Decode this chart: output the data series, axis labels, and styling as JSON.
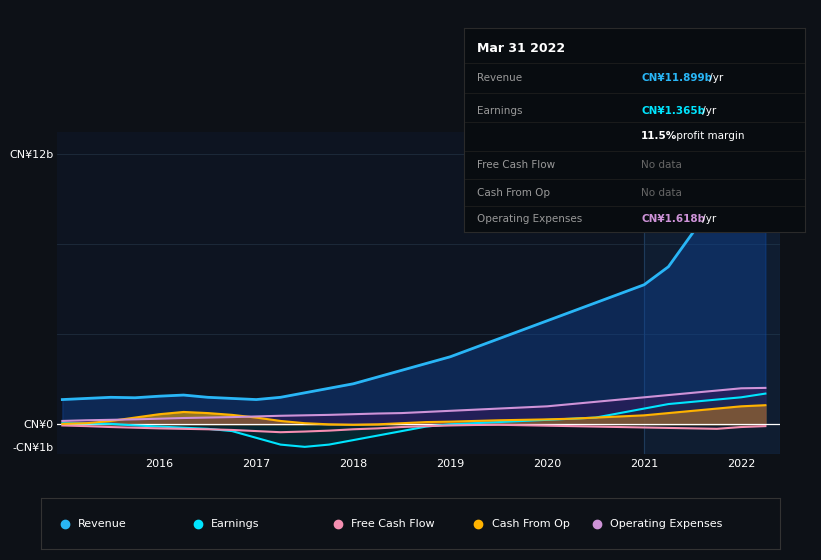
{
  "bg_color": "#0d1117",
  "chart_bg": "#0d1421",
  "grid_color": "#1e2d3d",
  "title_date": "Mar 31 2022",
  "tooltip_rows": [
    {
      "label": "Revenue",
      "value": "CN¥11.899b /yr",
      "value_color": "#29b6f6"
    },
    {
      "label": "Earnings",
      "value": "CN¥1.365b /yr",
      "value_color": "#00e5ff"
    },
    {
      "label": "",
      "value": "11.5% profit margin",
      "value_color": "#ffffff"
    },
    {
      "label": "Free Cash Flow",
      "value": "No data",
      "value_color": "#666666"
    },
    {
      "label": "Cash From Op",
      "value": "No data",
      "value_color": "#666666"
    },
    {
      "label": "Operating Expenses",
      "value": "CN¥1.618b /yr",
      "value_color": "#ce93d8"
    }
  ],
  "years": [
    2015.0,
    2015.25,
    2015.5,
    2015.75,
    2016.0,
    2016.25,
    2016.5,
    2016.75,
    2017.0,
    2017.25,
    2017.5,
    2017.75,
    2018.0,
    2018.25,
    2018.5,
    2018.75,
    2019.0,
    2019.25,
    2019.5,
    2019.75,
    2020.0,
    2020.25,
    2020.5,
    2020.75,
    2021.0,
    2021.25,
    2021.5,
    2021.75,
    2022.0,
    2022.25
  ],
  "revenue": [
    1.1,
    1.15,
    1.2,
    1.18,
    1.25,
    1.3,
    1.2,
    1.15,
    1.1,
    1.2,
    1.4,
    1.6,
    1.8,
    2.1,
    2.4,
    2.7,
    3.0,
    3.4,
    3.8,
    4.2,
    4.6,
    5.0,
    5.4,
    5.8,
    6.2,
    7.0,
    8.5,
    10.0,
    11.5,
    11.9
  ],
  "earnings": [
    0.05,
    0.04,
    0.02,
    -0.05,
    -0.1,
    -0.15,
    -0.2,
    -0.3,
    -0.6,
    -0.9,
    -1.0,
    -0.9,
    -0.7,
    -0.5,
    -0.3,
    -0.1,
    0.0,
    0.05,
    0.1,
    0.15,
    0.2,
    0.25,
    0.3,
    0.5,
    0.7,
    0.9,
    1.0,
    1.1,
    1.2,
    1.365
  ],
  "free_cash_flow": [
    -0.05,
    -0.08,
    -0.12,
    -0.15,
    -0.18,
    -0.2,
    -0.22,
    -0.25,
    -0.3,
    -0.35,
    -0.32,
    -0.28,
    -0.22,
    -0.18,
    -0.12,
    -0.08,
    -0.05,
    -0.03,
    -0.02,
    -0.04,
    -0.06,
    -0.08,
    -0.1,
    -0.12,
    -0.14,
    -0.16,
    -0.18,
    -0.2,
    -0.12,
    -0.08
  ],
  "cash_from_op": [
    0.02,
    0.05,
    0.15,
    0.3,
    0.45,
    0.55,
    0.5,
    0.42,
    0.3,
    0.15,
    0.05,
    0.0,
    -0.02,
    0.0,
    0.05,
    0.1,
    0.12,
    0.15,
    0.18,
    0.2,
    0.22,
    0.25,
    0.3,
    0.35,
    0.4,
    0.5,
    0.6,
    0.7,
    0.8,
    0.85
  ],
  "op_expenses": [
    0.15,
    0.18,
    0.2,
    0.22,
    0.25,
    0.28,
    0.3,
    0.32,
    0.35,
    0.38,
    0.4,
    0.42,
    0.45,
    0.48,
    0.5,
    0.55,
    0.6,
    0.65,
    0.7,
    0.75,
    0.8,
    0.9,
    1.0,
    1.1,
    1.2,
    1.3,
    1.4,
    1.5,
    1.6,
    1.618
  ],
  "ylim": [
    -1.3,
    13.0
  ],
  "ytick_vals": [
    -1.0,
    0.0,
    4.0,
    8.0,
    12.0
  ],
  "ytick_labels": [
    "-CN¥1b",
    "CN¥0",
    "",
    "",
    "CN¥12b"
  ],
  "xtick_years": [
    2016,
    2017,
    2018,
    2019,
    2020,
    2021,
    2022
  ],
  "divider_x": 2021.0,
  "colors": {
    "revenue": "#29b6f6",
    "revenue_fill": "#0d47a1",
    "earnings": "#00e5ff",
    "earnings_fill": "#003840",
    "free_cash_flow": "#f48fb1",
    "cash_from_op": "#ffb300",
    "op_expenses": "#ce93d8",
    "op_fill": "#4a1060",
    "zero_line": "#ffffff",
    "grid": "#1e2d3d"
  },
  "legend_items": [
    {
      "label": "Revenue",
      "color": "#29b6f6"
    },
    {
      "label": "Earnings",
      "color": "#00e5ff"
    },
    {
      "label": "Free Cash Flow",
      "color": "#f48fb1"
    },
    {
      "label": "Cash From Op",
      "color": "#ffb300"
    },
    {
      "label": "Operating Expenses",
      "color": "#ce93d8"
    }
  ]
}
